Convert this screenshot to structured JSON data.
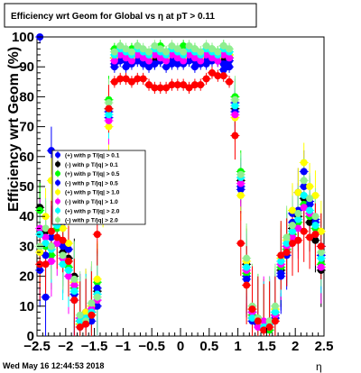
{
  "chart_data": {
    "type": "scatter",
    "title": "Efficiency wrt Geom for Global vs   η at pT > 0.11",
    "xlabel": "η",
    "ylabel": "Efficiency wrt Geom (%)",
    "xlim": [
      -2.5,
      2.5
    ],
    "ylim": [
      0,
      100
    ],
    "x_ticks": [
      "−2.5",
      "−2",
      "−1.5",
      "−1",
      "−0.5",
      "0",
      "0.5",
      "1",
      "1.5",
      "2",
      "2.5"
    ],
    "y_ticks": [
      "0",
      "10",
      "20",
      "30",
      "40",
      "50",
      "60",
      "70",
      "80",
      "90",
      "100"
    ],
    "grid": false,
    "legend_position": "left-middle",
    "footer": "Wed May 16 12:44:53 2018",
    "x": [
      -2.45,
      -2.35,
      -2.25,
      -2.15,
      -2.05,
      -1.95,
      -1.85,
      -1.75,
      -1.65,
      -1.55,
      -1.45,
      -1.35,
      -1.25,
      -1.15,
      -1.05,
      -0.95,
      -0.85,
      -0.75,
      -0.65,
      -0.55,
      -0.45,
      -0.35,
      -0.25,
      -0.15,
      -0.05,
      0.05,
      0.15,
      0.25,
      0.35,
      0.45,
      0.55,
      0.65,
      0.75,
      0.85,
      0.95,
      1.05,
      1.15,
      1.25,
      1.35,
      1.45,
      1.55,
      1.65,
      1.75,
      1.85,
      1.95,
      2.05,
      2.15,
      2.25,
      2.35,
      2.45
    ],
    "series": [
      {
        "name": "(+) with p T/|q| > 0.1",
        "color": "#0000ff",
        "marker": "circle",
        "values": [
          100,
          13,
          62,
          55,
          38,
          40,
          12,
          3,
          8,
          5,
          10,
          50,
          73,
          90,
          92,
          90,
          92,
          93,
          91,
          90,
          91,
          92,
          90,
          91,
          92,
          91,
          92,
          90,
          93,
          91,
          92,
          92,
          89,
          90,
          78,
          49,
          20,
          8,
          5,
          3,
          4,
          6,
          20,
          30,
          41,
          48,
          55,
          45,
          39,
          30
        ]
      },
      {
        "name": "(-) with p T/|q| > 0.1",
        "color": "#000000",
        "marker": "circle",
        "values": [
          43,
          35,
          30,
          42,
          28,
          26,
          20,
          5,
          6,
          8,
          15,
          48,
          76,
          93,
          94,
          93,
          94,
          93,
          94,
          93,
          92,
          93,
          94,
          93,
          92,
          93,
          94,
          93,
          92,
          93,
          94,
          93,
          92,
          93,
          76,
          52,
          24,
          6,
          4,
          2,
          3,
          7,
          22,
          28,
          36,
          40,
          46,
          38,
          32,
          22
        ]
      },
      {
        "name": "(+) with p T/|q| > 0.5",
        "color": "#00ff00",
        "marker": "circle",
        "values": [
          42,
          30,
          27,
          36,
          26,
          23,
          16,
          4,
          5,
          7,
          18,
          55,
          79,
          96,
          97,
          95,
          96,
          97,
          95,
          94,
          96,
          97,
          95,
          96,
          94,
          97,
          95,
          96,
          94,
          95,
          96,
          95,
          97,
          94,
          80,
          55,
          21,
          7,
          6,
          4,
          2,
          8,
          23,
          29,
          34,
          38,
          44,
          40,
          36,
          24
        ]
      },
      {
        "name": "(-) with p T/|q| > 0.5",
        "color": "#0000ff",
        "marker": "circle",
        "values": [
          22,
          27,
          33,
          39,
          30,
          29,
          14,
          6,
          7,
          9,
          16,
          50,
          75,
          91,
          93,
          92,
          91,
          92,
          93,
          92,
          91,
          92,
          93,
          92,
          91,
          92,
          93,
          92,
          91,
          92,
          93,
          92,
          91,
          92,
          75,
          50,
          19,
          5,
          4,
          3,
          5,
          6,
          21,
          27,
          38,
          42,
          50,
          44,
          38,
          27
        ]
      },
      {
        "name": "(+) with p T/|q| > 1.0",
        "color": "#ffff00",
        "marker": "circle",
        "values": [
          28,
          40,
          52,
          48,
          36,
          31,
          18,
          4,
          8,
          10,
          19,
          45,
          70,
          93,
          95,
          94,
          93,
          95,
          94,
          93,
          95,
          94,
          93,
          95,
          94,
          93,
          95,
          94,
          93,
          95,
          94,
          93,
          95,
          94,
          73,
          47,
          25,
          9,
          5,
          4,
          3,
          9,
          26,
          32,
          42,
          48,
          58,
          50,
          47,
          35
        ]
      },
      {
        "name": "(-) with p T/|q| > 1.0",
        "color": "#ff00ff",
        "marker": "circle",
        "values": [
          36,
          33,
          25,
          31,
          26,
          20,
          17,
          6,
          4,
          9,
          12,
          47,
          72,
          92,
          94,
          93,
          92,
          94,
          93,
          92,
          94,
          93,
          92,
          94,
          93,
          92,
          94,
          93,
          92,
          94,
          93,
          92,
          94,
          93,
          74,
          51,
          22,
          8,
          3,
          5,
          4,
          7,
          24,
          30,
          33,
          36,
          43,
          41,
          34,
          23
        ]
      },
      {
        "name": "(+) with p T/|q| > 2.0",
        "color": "#00ffff",
        "marker": "circle",
        "values": [
          34,
          31,
          29,
          37,
          24,
          22,
          15,
          5,
          6,
          8,
          14,
          49,
          74,
          94,
          96,
          95,
          94,
          96,
          95,
          94,
          96,
          95,
          94,
          96,
          95,
          94,
          96,
          95,
          94,
          96,
          95,
          94,
          96,
          95,
          77,
          53,
          23,
          6,
          5,
          3,
          4,
          8,
          25,
          31,
          35,
          39,
          47,
          42,
          37,
          26
        ]
      },
      {
        "name": "(-) with p T/|q| > 2.0",
        "color": "#90ee90",
        "marker": "circle",
        "values": [
          30,
          36,
          30,
          40,
          27,
          25,
          19,
          7,
          5,
          11,
          13,
          52,
          78,
          95,
          97,
          96,
          95,
          97,
          96,
          95,
          97,
          96,
          95,
          97,
          96,
          95,
          97,
          96,
          95,
          97,
          96,
          95,
          97,
          96,
          79,
          54,
          26,
          10,
          6,
          2,
          5,
          10,
          27,
          33,
          37,
          41,
          52,
          46,
          40,
          28
        ]
      },
      {
        "color": "#ff0000",
        "marker": "circle",
        "values": [
          24,
          24,
          35,
          33,
          32,
          25,
          12,
          3,
          4,
          7,
          34,
          51,
          76,
          85,
          86,
          86,
          85,
          86,
          86,
          84,
          83,
          83,
          83,
          84,
          84,
          84,
          83,
          84,
          84,
          86,
          88,
          87,
          87,
          85,
          67,
          31,
          17,
          9,
          5,
          2,
          3,
          5,
          27,
          28,
          31,
          32,
          35,
          33,
          34,
          30
        ]
      }
    ]
  }
}
